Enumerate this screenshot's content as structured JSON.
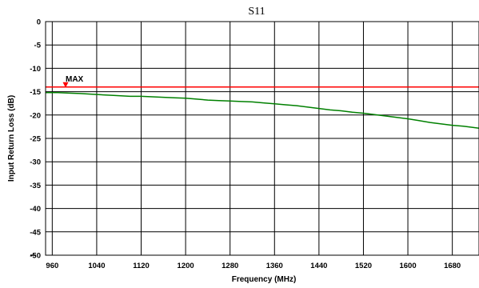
{
  "chart_data": {
    "type": "line",
    "title": "S11",
    "xlabel": "Frequency (MHz)",
    "ylabel": "Input Return Loss (dB)",
    "xlim": [
      948,
      1728
    ],
    "ylim": [
      -50,
      0
    ],
    "x_ticks": [
      960,
      1040,
      1120,
      1200,
      1280,
      1360,
      1440,
      1520,
      1600,
      1680
    ],
    "x_tick_labels": [
      "960",
      "1040",
      "1120",
      "1200",
      "1280",
      "1360",
      "1440",
      "1520",
      "1600",
      "1680"
    ],
    "y_ticks": [
      0,
      -5,
      -10,
      -15,
      -20,
      -25,
      -30,
      -35,
      -40,
      -45,
      -50
    ],
    "y_tick_labels": [
      "0",
      "-5",
      "-10",
      "-15",
      "-20",
      "-25",
      "-30",
      "-35",
      "-40",
      "-45",
      "-50"
    ],
    "grid": true,
    "colors": {
      "series": "#008000",
      "limit": "#ff0000",
      "grid": "#000000"
    },
    "series": [
      {
        "x": [
          948,
          970,
          990,
          1010,
          1040,
          1070,
          1100,
          1120,
          1140,
          1160,
          1180,
          1200,
          1220,
          1240,
          1260,
          1280,
          1300,
          1320,
          1340,
          1360,
          1380,
          1400,
          1420,
          1440,
          1460,
          1480,
          1500,
          1520,
          1540,
          1560,
          1580,
          1600,
          1620,
          1640,
          1660,
          1680,
          1700,
          1728
        ],
        "values": [
          -15.2,
          -15.2,
          -15.3,
          -15.4,
          -15.6,
          -15.8,
          -16.0,
          -16.0,
          -16.1,
          -16.2,
          -16.3,
          -16.4,
          -16.6,
          -16.8,
          -16.9,
          -17.0,
          -17.1,
          -17.2,
          -17.4,
          -17.6,
          -17.8,
          -18.0,
          -18.3,
          -18.6,
          -18.9,
          -19.1,
          -19.4,
          -19.6,
          -19.9,
          -20.2,
          -20.5,
          -20.8,
          -21.2,
          -21.6,
          -21.9,
          -22.2,
          -22.4,
          -22.8
        ]
      }
    ],
    "limit_line": {
      "label": "MAX",
      "value": -14,
      "marker_x": 984
    }
  }
}
